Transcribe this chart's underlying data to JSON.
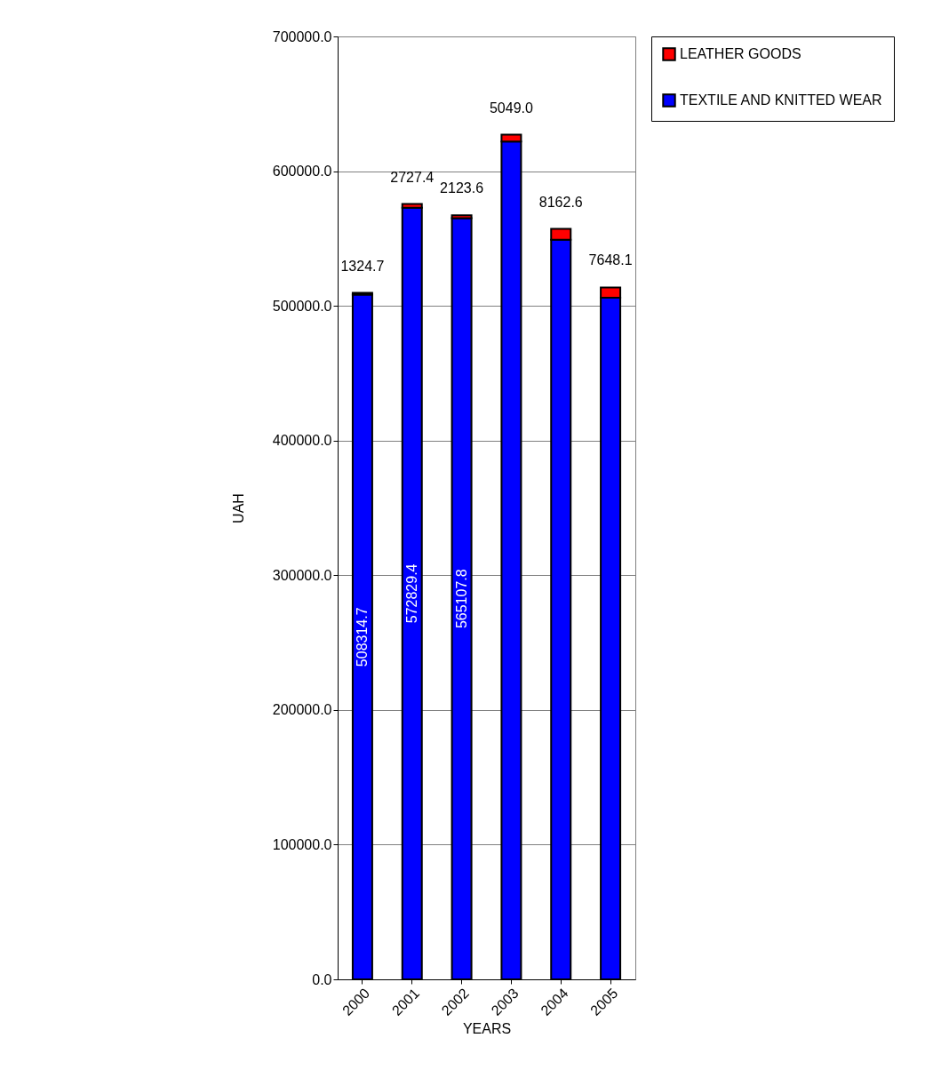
{
  "chart_data": {
    "type": "bar",
    "stacked": true,
    "xlabel": "YEARS",
    "ylabel": "UAH",
    "categories": [
      "2000",
      "2001",
      "2002",
      "2003",
      "2004",
      "2005"
    ],
    "series": [
      {
        "name": "TEXTILE AND KNITTED WEAR",
        "color": "#0000ff",
        "values": [
          508314.7,
          572829.4,
          565107.8,
          622000,
          549000,
          506000
        ],
        "value_labels": [
          "508314.7",
          "572829.4",
          "565107.8",
          null,
          null,
          null
        ]
      },
      {
        "name": "LEATHER GOODS",
        "color": "#ff0000",
        "values": [
          1324.7,
          2727.4,
          2123.6,
          5049.0,
          8162.6,
          7648.1
        ],
        "value_labels": [
          "1324.7",
          "2727.4",
          "2123.6",
          "5049.0",
          "8162.6",
          "7648.1"
        ]
      }
    ],
    "ylim": [
      0,
      700000
    ],
    "yticks": [
      {
        "value": 0,
        "label": "0.0"
      },
      {
        "value": 100000,
        "label": "100000.0"
      },
      {
        "value": 200000,
        "label": "200000.0"
      },
      {
        "value": 300000,
        "label": "300000.0"
      },
      {
        "value": 400000,
        "label": "400000.0"
      },
      {
        "value": 500000,
        "label": "500000.0"
      },
      {
        "value": 600000,
        "label": "600000.0"
      },
      {
        "value": 700000,
        "label": "700000.0"
      }
    ],
    "grid": "y",
    "legend": "right"
  }
}
